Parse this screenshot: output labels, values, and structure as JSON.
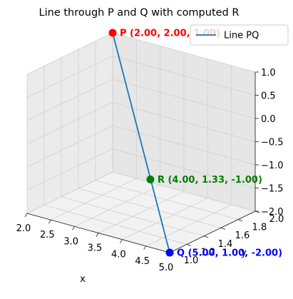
{
  "chart_data": {
    "type": "line",
    "projection": "3d",
    "title": "Line through P and Q with computed R",
    "xlabel": "x",
    "ylabel": "y",
    "zlabel": "",
    "xlim": [
      2.0,
      5.0
    ],
    "ylim": [
      1.0,
      2.0
    ],
    "zlim": [
      -2.0,
      1.0
    ],
    "xticks": [
      "2.0",
      "2.5",
      "3.0",
      "3.5",
      "4.0",
      "4.5",
      "5.0"
    ],
    "yticks": [
      "1.0",
      "1.2",
      "1.4",
      "1.6",
      "1.8",
      "2.0"
    ],
    "zticks": [
      "−2.0",
      "−1.5",
      "−1.0",
      "−0.5",
      "0.0",
      "0.5",
      "1.0"
    ],
    "grid": true,
    "legend": {
      "position": "top-right"
    },
    "series": [
      {
        "name": "Line PQ",
        "color": "#1f77b4",
        "points": [
          {
            "x": 2.0,
            "y": 2.0,
            "z": 1.0
          },
          {
            "x": 5.0,
            "y": 1.0,
            "z": -2.0
          }
        ]
      }
    ],
    "points": [
      {
        "label": "P (2.00, 2.00, 1.00)",
        "x": 2.0,
        "y": 2.0,
        "z": 1.0,
        "color": "#ff0000"
      },
      {
        "label": "R (4.00, 1.33, -1.00)",
        "x": 4.0,
        "y": 1.33,
        "z": -1.0,
        "color": "#008000"
      },
      {
        "label": "Q (5.00, 1.00, -2.00)",
        "x": 5.0,
        "y": 1.0,
        "z": -2.0,
        "color": "#0000ff"
      }
    ]
  }
}
